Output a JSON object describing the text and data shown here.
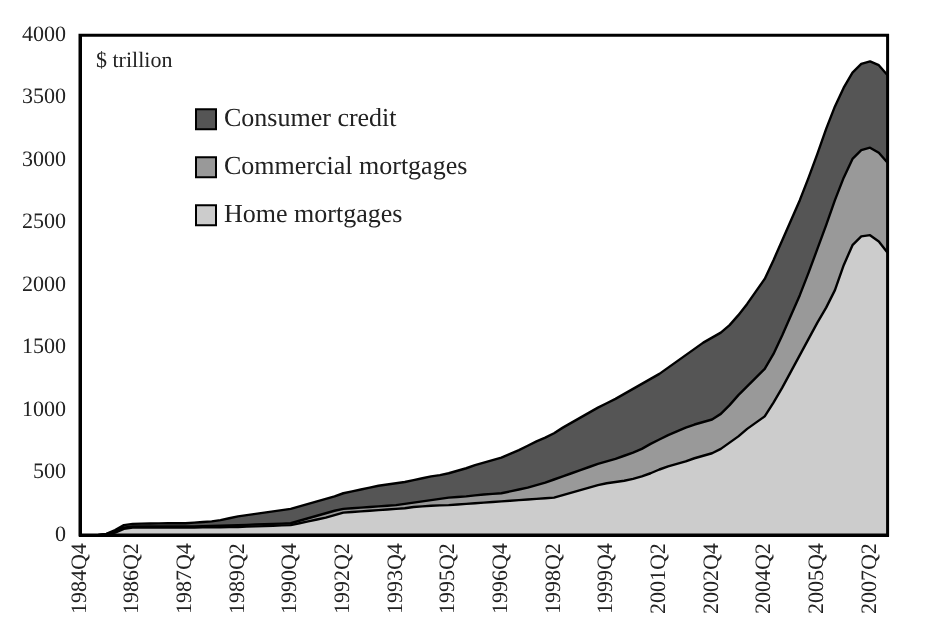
{
  "chart_data": {
    "type": "area",
    "stacked": true,
    "ylabel": "$ trillion",
    "categories": [
      "1984Q4",
      null,
      null,
      null,
      null,
      null,
      "1986Q2",
      null,
      null,
      null,
      null,
      null,
      "1987Q4",
      null,
      null,
      null,
      null,
      null,
      "1989Q2",
      null,
      null,
      null,
      null,
      null,
      "1990Q4",
      null,
      null,
      null,
      null,
      null,
      "1992Q2",
      null,
      null,
      null,
      null,
      null,
      "1993Q4",
      null,
      null,
      null,
      null,
      null,
      "1995Q2",
      null,
      null,
      null,
      null,
      null,
      "1996Q4",
      null,
      null,
      null,
      null,
      null,
      "1998Q2",
      null,
      null,
      null,
      null,
      null,
      "1999Q4",
      null,
      null,
      null,
      null,
      null,
      "2001Q2",
      null,
      null,
      null,
      null,
      null,
      "2002Q4",
      null,
      null,
      null,
      null,
      null,
      "2004Q2",
      null,
      null,
      null,
      null,
      null,
      "2005Q4",
      null,
      null,
      null,
      null,
      null,
      "2007Q2",
      null,
      null
    ],
    "series": [
      {
        "name": "Home mortgages",
        "color": "#cccccc",
        "values": [
          0,
          0,
          0,
          5,
          20,
          50,
          60,
          60,
          60,
          60,
          60,
          60,
          60,
          60,
          62,
          62,
          63,
          64,
          65,
          68,
          70,
          72,
          75,
          78,
          80,
          95,
          110,
          125,
          140,
          160,
          180,
          185,
          190,
          195,
          200,
          205,
          210,
          215,
          225,
          230,
          235,
          238,
          240,
          245,
          250,
          255,
          260,
          265,
          270,
          275,
          280,
          285,
          290,
          295,
          300,
          320,
          340,
          360,
          380,
          400,
          415,
          425,
          435,
          450,
          470,
          495,
          525,
          550,
          570,
          590,
          615,
          635,
          655,
          690,
          740,
          790,
          850,
          900,
          950,
          1060,
          1180,
          1310,
          1440,
          1570,
          1700,
          1820,
          1960,
          2160,
          2320,
          2390,
          2400,
          2350,
          2260
        ]
      },
      {
        "name": "Commercial mortgages",
        "color": "#999999",
        "values": [
          0,
          0,
          0,
          3,
          10,
          10,
          10,
          10,
          10,
          10,
          10,
          10,
          10,
          10,
          10,
          12,
          13,
          14,
          15,
          14,
          15,
          16,
          15,
          14,
          15,
          20,
          25,
          30,
          35,
          35,
          30,
          30,
          30,
          30,
          30,
          30,
          30,
          35,
          35,
          40,
          45,
          52,
          60,
          60,
          60,
          63,
          65,
          65,
          65,
          75,
          85,
          95,
          110,
          125,
          145,
          150,
          155,
          160,
          165,
          170,
          175,
          185,
          200,
          210,
          220,
          235,
          240,
          250,
          260,
          270,
          270,
          270,
          270,
          280,
          300,
          330,
          340,
          360,
          380,
          390,
          420,
          450,
          480,
          530,
          590,
          660,
          720,
          700,
          690,
          690,
          700,
          710,
          720
        ]
      },
      {
        "name": "Consumer credit",
        "color": "#555555",
        "values": [
          0,
          0,
          0,
          2,
          10,
          20,
          20,
          22,
          23,
          24,
          25,
          25,
          25,
          30,
          33,
          36,
          44,
          57,
          70,
          78,
          85,
          92,
          100,
          108,
          115,
          115,
          115,
          115,
          115,
          115,
          125,
          135,
          145,
          155,
          165,
          170,
          175,
          175,
          180,
          185,
          190,
          190,
          195,
          210,
          225,
          242,
          255,
          270,
          285,
          300,
          315,
          335,
          350,
          360,
          370,
          390,
          405,
          420,
          435,
          450,
          465,
          480,
          495,
          510,
          520,
          520,
          525,
          540,
          560,
          580,
          605,
          635,
          655,
          650,
          640,
          640,
          660,
          690,
          720,
          750,
          760,
          760,
          760,
          760,
          760,
          770,
          750,
          720,
          690,
          690,
          690,
          700,
          700
        ]
      }
    ],
    "ylim": [
      0,
      4000
    ],
    "yticks": [
      0,
      500,
      1000,
      1500,
      2000,
      2500,
      3000,
      3500,
      4000
    ],
    "grid": false,
    "legend": "top left"
  }
}
